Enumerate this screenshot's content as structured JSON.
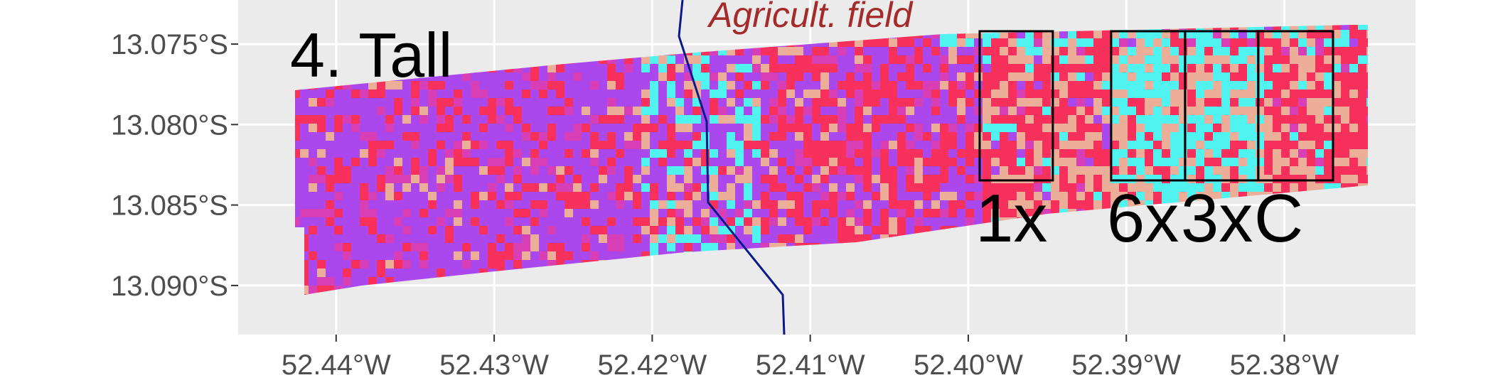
{
  "chart_data": {
    "type": "map",
    "xlim": [
      -52.4462,
      -52.3717
    ],
    "ylim": [
      -13.09305,
      -13.07226
    ],
    "xticks": [
      {
        "value": -52.44,
        "label": "52.44°W"
      },
      {
        "value": -52.43,
        "label": "52.43°W"
      },
      {
        "value": -52.42,
        "label": "52.42°W"
      },
      {
        "value": -52.41,
        "label": "52.41°W"
      },
      {
        "value": -52.4,
        "label": "52.40°W"
      },
      {
        "value": -52.39,
        "label": "52.39°W"
      },
      {
        "value": -52.38,
        "label": "52.38°W"
      }
    ],
    "yticks": [
      {
        "value": -13.075,
        "label": "13.075°S"
      },
      {
        "value": -13.08,
        "label": "13.080°S"
      },
      {
        "value": -13.085,
        "label": "13.085°S"
      },
      {
        "value": -13.09,
        "label": "13.090°S"
      }
    ],
    "grid": true,
    "panel_label": "4. Tall",
    "annotation": "Agricult. field",
    "cell_colors": [
      "#aa48ee",
      "#d83fb6",
      "#f7305c",
      "#50f3ef",
      "#ecae98"
    ],
    "boxes": [
      {
        "label": "1x",
        "lon": [
          -52.39928,
          -52.39465
        ],
        "lat": [
          -13.08347,
          -13.0742
        ]
      },
      {
        "label": "6x",
        "lon": [
          -52.39096,
          -52.38628
        ],
        "lat": [
          -13.08347,
          -13.0742
        ]
      },
      {
        "label": "3x",
        "lon": [
          -52.38628,
          -52.38165
        ],
        "lat": [
          -13.08347,
          -13.0742
        ]
      },
      {
        "label": "C",
        "lon": [
          -52.38165,
          -52.37692
        ],
        "lat": [
          -13.08347,
          -13.0742
        ]
      }
    ]
  }
}
